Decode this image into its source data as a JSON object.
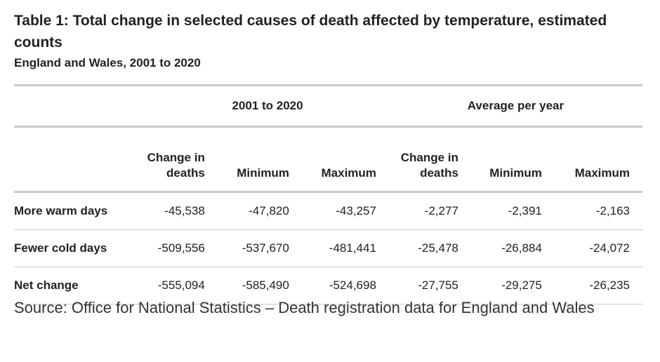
{
  "title": "Table 1: Total change in selected causes of death affected by temperature, estimated counts",
  "subtitle": "England and Wales, 2001 to 2020",
  "table": {
    "group_headers": [
      "2001 to 2020",
      "Average per year"
    ],
    "column_headers": [
      "Change in deaths",
      "Minimum",
      "Maximum",
      "Change in deaths",
      "Minimum",
      "Maximum"
    ],
    "rows": [
      {
        "label": "More warm days",
        "values": [
          "-45,538",
          "-47,820",
          "-43,257",
          "-2,277",
          "-2,391",
          "-2,163"
        ]
      },
      {
        "label": "Fewer cold days",
        "values": [
          "-509,556",
          "-537,670",
          "-481,441",
          "-25,478",
          "-26,884",
          "-24,072"
        ]
      },
      {
        "label": "Net change",
        "values": [
          "-555,094",
          "-585,490",
          "-524,698",
          "-27,755",
          "-29,275",
          "-26,235"
        ]
      }
    ]
  },
  "source": "Source: Office for National Statistics – Death registration data for England and Wales"
}
